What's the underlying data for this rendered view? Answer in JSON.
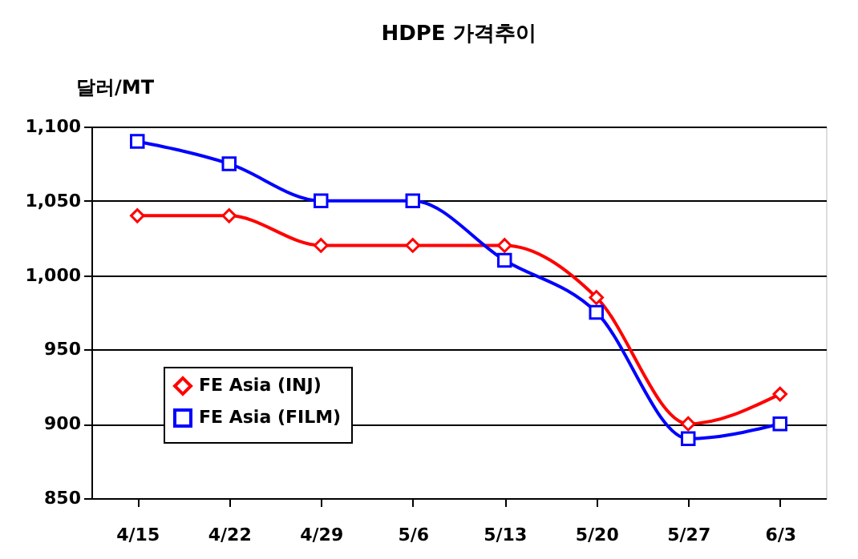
{
  "chart_data": {
    "type": "line",
    "title": "HDPE 가격추이",
    "ylabel": "달러/MT",
    "categories": [
      "4/15",
      "4/22",
      "4/29",
      "5/6",
      "5/13",
      "5/20",
      "5/27",
      "6/3"
    ],
    "series": [
      {
        "name": "FE Asia (INJ)",
        "color": "#ff0000",
        "marker": "diamond",
        "values": [
          1040,
          1040,
          1020,
          1020,
          1020,
          985,
          900,
          920
        ]
      },
      {
        "name": "FE Asia (FILM)",
        "color": "#0000ff",
        "marker": "square",
        "values": [
          1090,
          1075,
          1050,
          1050,
          1010,
          975,
          890,
          900
        ]
      }
    ],
    "ylim": [
      850,
      1100
    ],
    "yticks": [
      850,
      900,
      950,
      {
        "value": 1000,
        "label": "1,000"
      },
      {
        "value": 1050,
        "label": "1,050"
      },
      {
        "value": 1100,
        "label": "1,100"
      }
    ],
    "grid": "y",
    "legend": "bottom left",
    "line_style": "solid"
  }
}
